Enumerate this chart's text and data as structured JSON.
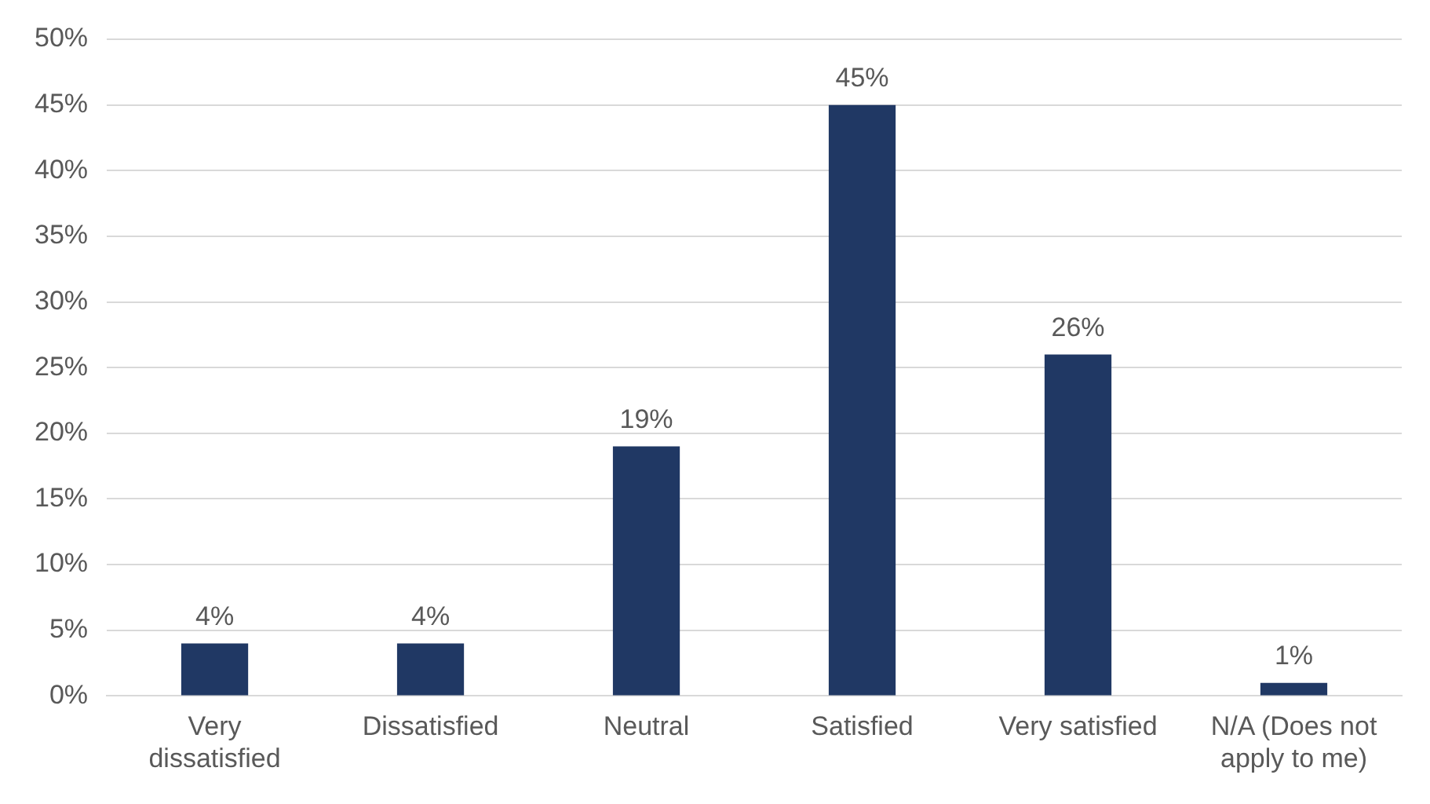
{
  "chart_data": {
    "type": "bar",
    "categories": [
      "Very dissatisfied",
      "Dissatisfied",
      "Neutral",
      "Satisfied",
      "Very satisfied",
      "N/A (Does not apply to me)"
    ],
    "values": [
      4,
      4,
      19,
      45,
      26,
      1
    ],
    "value_labels": [
      "4%",
      "4%",
      "19%",
      "45%",
      "26%",
      "1%"
    ],
    "color": "#203864",
    "ylim": [
      0,
      50
    ],
    "yticks": [
      {
        "value": 0,
        "label": "0%"
      },
      {
        "value": 5,
        "label": "5%"
      },
      {
        "value": 10,
        "label": "10%"
      },
      {
        "value": 15,
        "label": "15%"
      },
      {
        "value": 20,
        "label": "20%"
      },
      {
        "value": 25,
        "label": "25%"
      },
      {
        "value": 30,
        "label": "30%"
      },
      {
        "value": 35,
        "label": "35%"
      },
      {
        "value": 40,
        "label": "40%"
      },
      {
        "value": 45,
        "label": "45%"
      },
      {
        "value": 50,
        "label": "50%"
      }
    ],
    "grid": "y",
    "legend": false
  }
}
